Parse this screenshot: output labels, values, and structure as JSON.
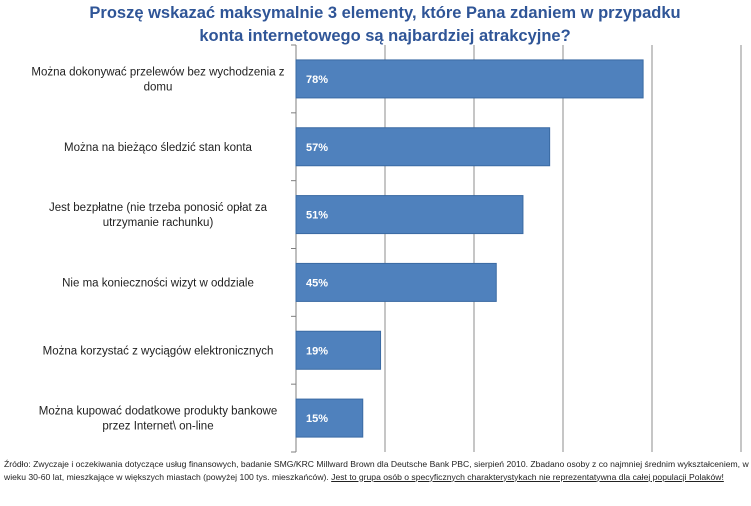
{
  "title": {
    "line1": "Proszę wskazać maksymalnie 3 elementy, które Pana zdaniem w przypadku",
    "line2": "konta internetowego są najbardziej atrakcyjne?"
  },
  "colors": {
    "bar": "#4f81bd",
    "bar_edge": "#3a6aa3",
    "grid": "#8c8c8c",
    "title": "#2f5597"
  },
  "chart_data": {
    "type": "bar",
    "orientation": "horizontal",
    "categories": [
      [
        "Można dokonywać  przelewów bez wychodzenia z",
        "domu"
      ],
      [
        "Można na bieżąco śledzić stan  konta"
      ],
      [
        "Jest bezpłatne (nie trzeba ponosić  opłat  za",
        "utrzymanie rachunku)"
      ],
      [
        "Nie ma konieczności wizyt w oddziale"
      ],
      [
        "Można korzystać z wyciągów  elektronicznych"
      ],
      [
        "Można kupować dodatkowe produkty bankowe",
        "przez Internet\\ on-line"
      ]
    ],
    "values": [
      78,
      57,
      51,
      45,
      19,
      15
    ],
    "value_labels": [
      "78%",
      "57%",
      "51%",
      "45%",
      "19%",
      "15%"
    ],
    "xlim": [
      0,
      100
    ],
    "grid": true
  },
  "source": {
    "text": "Źródło: Zwyczaje i oczekiwania dotyczące usług finansowych, badanie SMG/KRC Millward Brown dla Deutsche Bank PBC, sierpień 2010. Zbadano osoby z co najmniej średnim wykształceniem, w wieku 30-60 lat, mieszkające w większych miastach (powyżej 100 tys. mieszkańców). ",
    "underlined": "Jest to grupa osób o specyficznych charakterystykach nie reprezentatywna dla całej populacji Polaków!"
  }
}
